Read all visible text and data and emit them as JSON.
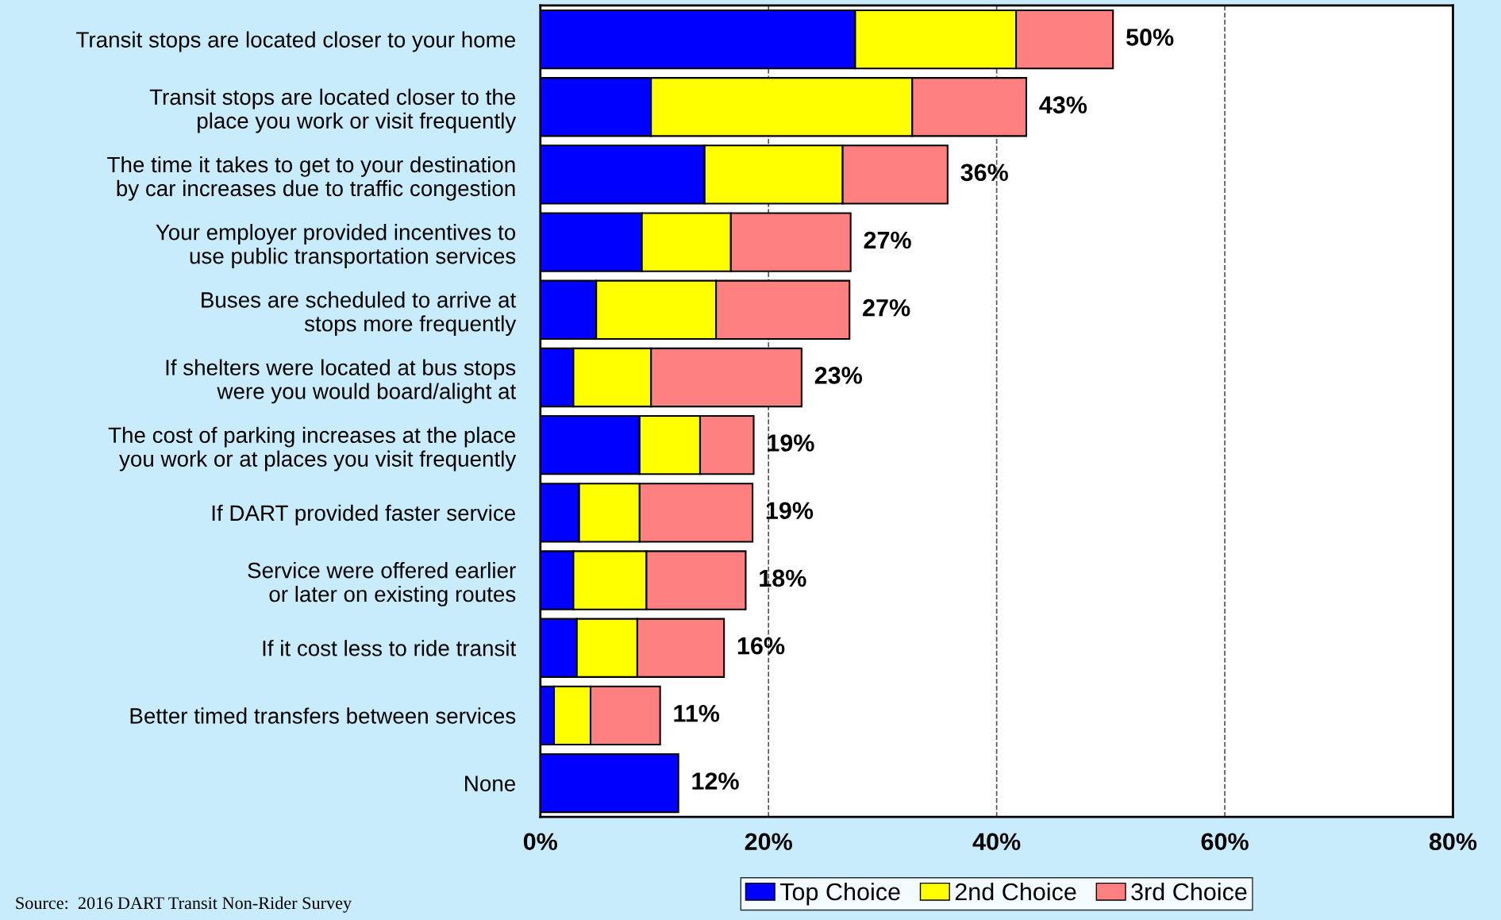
{
  "chart_data": {
    "type": "bar",
    "orientation": "horizontal",
    "stacked": true,
    "categories": [
      "Transit stops are located closer to your home",
      "Transit stops are located closer to the\nplace you work or visit frequently",
      "The time it takes to get to your destination\nby car increases due to traffic congestion",
      "Your employer provided incentives to\nuse public transportation services",
      "Buses are scheduled to arrive at\nstops more frequently",
      "If shelters were located at bus stops\nwere you would board/alight at",
      "The cost of parking increases at the place\nyou work or at places you visit frequently",
      "If DART provided faster service",
      "Service were offered earlier\nor later on existing routes",
      "If it cost less to ride transit",
      "Better timed transfers between services",
      "None"
    ],
    "series": [
      {
        "name": "Top Choice",
        "color": "#0000ff",
        "values": [
          27.6,
          9.7,
          14.4,
          8.9,
          4.9,
          2.9,
          8.7,
          3.4,
          2.9,
          3.2,
          1.2,
          12.1
        ]
      },
      {
        "name": "2nd Choice",
        "color": "#ffff00",
        "values": [
          14.1,
          22.9,
          12.1,
          7.8,
          10.5,
          6.8,
          5.3,
          5.3,
          6.4,
          5.3,
          3.2,
          null
        ]
      },
      {
        "name": "3rd Choice",
        "color": "#ff8080",
        "values": [
          8.5,
          10.0,
          9.2,
          10.5,
          11.7,
          13.2,
          4.7,
          9.9,
          8.7,
          7.6,
          6.1,
          null
        ]
      }
    ],
    "totals": [
      "50%",
      "43%",
      "36%",
      "27%",
      "27%",
      "23%",
      "19%",
      "19%",
      "18%",
      "16%",
      "11%",
      "12%"
    ],
    "xlim": [
      0,
      80
    ],
    "xticks": [
      {
        "value": 0,
        "label": "0%"
      },
      {
        "value": 20,
        "label": "20%"
      },
      {
        "value": 40,
        "label": "40%"
      },
      {
        "value": 60,
        "label": "60%"
      },
      {
        "value": 80,
        "label": "80%"
      }
    ],
    "grid": "x",
    "legend": "bottom",
    "annotations": [
      "Source:  2016 DART Transit Non-Rider Survey"
    ]
  }
}
